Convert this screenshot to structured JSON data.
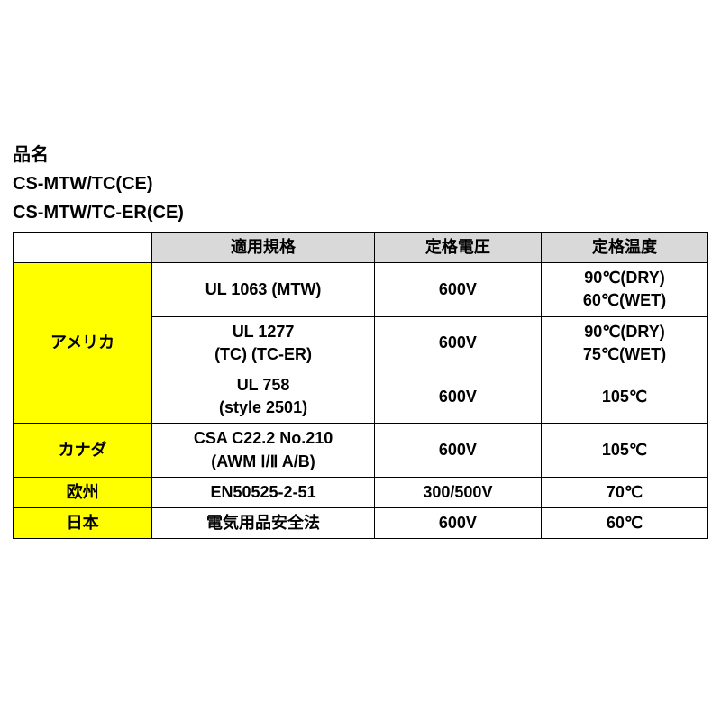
{
  "titles": {
    "label": "品名",
    "line1": "CS-MTW/TC(CE)",
    "line2": "CS-MTW/TC-ER(CE)"
  },
  "table": {
    "headers": {
      "empty": "",
      "standard": "適用規格",
      "voltage": "定格電圧",
      "temp": "定格温度"
    },
    "regions": {
      "america": "アメリカ",
      "canada": "カナダ",
      "europe": "欧州",
      "japan": "日本"
    },
    "rows": {
      "r1": {
        "std": "UL 1063 (MTW)",
        "v": "600V",
        "t_l1": "90℃(DRY)",
        "t_l2": "60℃(WET)"
      },
      "r2": {
        "std_l1": "UL 1277",
        "std_l2": "(TC) (TC-ER)",
        "v": "600V",
        "t_l1": "90℃(DRY)",
        "t_l2": "75℃(WET)"
      },
      "r3": {
        "std_l1": "UL 758",
        "std_l2": "(style 2501)",
        "v": "600V",
        "t": "105℃"
      },
      "r4": {
        "std_l1": "CSA C22.2 No.210",
        "std_l2": "(AWM Ⅰ/Ⅱ A/B)",
        "v": "600V",
        "t": "105℃"
      },
      "r5": {
        "std": "EN50525-2-51",
        "v": "300/500V",
        "t": "70℃"
      },
      "r6": {
        "std": "電気用品安全法",
        "v": "600V",
        "t": "60℃"
      }
    }
  },
  "colors": {
    "header_bg": "#d9d9d9",
    "region_bg": "#ffff00",
    "border": "#000000",
    "text": "#000000",
    "background": "#ffffff"
  }
}
